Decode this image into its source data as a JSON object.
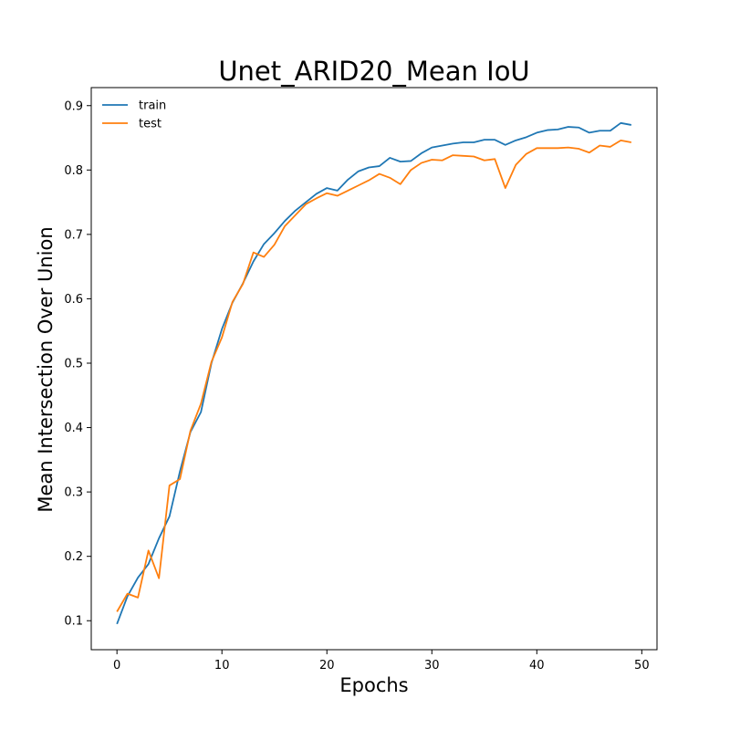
{
  "chart_data": {
    "type": "line",
    "title": "Unet_ARID20_Mean IoU",
    "xlabel": "Epochs",
    "ylabel": "Mean Intersection Over Union",
    "xlim": [
      -2.45,
      51.45
    ],
    "ylim": [
      0.055,
      0.928
    ],
    "xticks": [
      0,
      10,
      20,
      30,
      40,
      50
    ],
    "yticks": [
      0.1,
      0.2,
      0.3,
      0.4,
      0.5,
      0.6,
      0.7,
      0.8,
      0.9
    ],
    "grid": false,
    "legend_position": "top-left",
    "x": [
      0,
      1,
      2,
      3,
      4,
      5,
      6,
      7,
      8,
      9,
      10,
      11,
      12,
      13,
      14,
      15,
      16,
      17,
      18,
      19,
      20,
      21,
      22,
      23,
      24,
      25,
      26,
      27,
      28,
      29,
      30,
      31,
      32,
      33,
      34,
      35,
      36,
      37,
      38,
      39,
      40,
      41,
      42,
      43,
      44,
      45,
      46,
      47,
      48,
      49
    ],
    "series": [
      {
        "name": "train",
        "color": "#1f77b4",
        "values": [
          0.095,
          0.138,
          0.167,
          0.188,
          0.228,
          0.262,
          0.332,
          0.393,
          0.424,
          0.5,
          0.553,
          0.594,
          0.624,
          0.658,
          0.685,
          0.702,
          0.721,
          0.737,
          0.75,
          0.763,
          0.772,
          0.768,
          0.785,
          0.798,
          0.804,
          0.806,
          0.819,
          0.813,
          0.814,
          0.826,
          0.835,
          0.838,
          0.841,
          0.843,
          0.843,
          0.847,
          0.847,
          0.839,
          0.846,
          0.851,
          0.858,
          0.862,
          0.863,
          0.867,
          0.866,
          0.858,
          0.861,
          0.861,
          0.873,
          0.87
        ]
      },
      {
        "name": "test",
        "color": "#ff7f0e",
        "values": [
          0.114,
          0.142,
          0.136,
          0.209,
          0.166,
          0.31,
          0.32,
          0.395,
          0.437,
          0.502,
          0.54,
          0.595,
          0.623,
          0.672,
          0.665,
          0.684,
          0.713,
          0.73,
          0.747,
          0.756,
          0.764,
          0.76,
          0.768,
          0.776,
          0.784,
          0.794,
          0.788,
          0.778,
          0.8,
          0.811,
          0.816,
          0.815,
          0.823,
          0.822,
          0.821,
          0.815,
          0.817,
          0.772,
          0.808,
          0.825,
          0.834,
          0.834,
          0.834,
          0.835,
          0.833,
          0.827,
          0.838,
          0.836,
          0.846,
          0.843
        ]
      }
    ]
  }
}
